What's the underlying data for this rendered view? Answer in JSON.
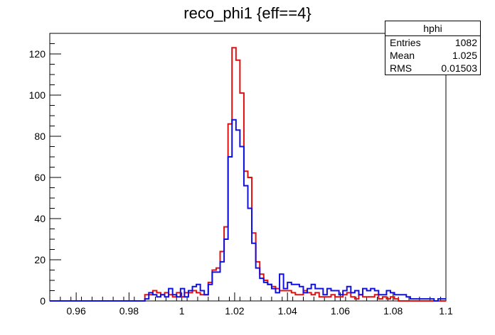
{
  "chart_data": {
    "type": "histogram",
    "title": "reco_phi1 {eff==4}",
    "xlim": [
      0.95,
      1.1
    ],
    "ylim": [
      0,
      130
    ],
    "xticks": [
      0.96,
      0.98,
      1,
      1.02,
      1.04,
      1.06,
      1.08,
      1.1
    ],
    "xtick_labels": [
      "0.96",
      "0.98",
      "1",
      "1.02",
      "1.04",
      "1.06",
      "1.08",
      "1.1"
    ],
    "yticks": [
      0,
      20,
      40,
      60,
      80,
      100,
      120
    ],
    "ytick_labels": [
      "0",
      "20",
      "40",
      "60",
      "80",
      "100",
      "120"
    ],
    "bin_width": 0.0015,
    "series": [
      {
        "color": "#e01010",
        "values": [
          0,
          0,
          0,
          0,
          0,
          0,
          0,
          0,
          0,
          0,
          0,
          0,
          0,
          0,
          0,
          0,
          0,
          0,
          0,
          0,
          0,
          0,
          0,
          0,
          3,
          3,
          5,
          4,
          3,
          4,
          3,
          2,
          4,
          2,
          4,
          4,
          5,
          4,
          3,
          3,
          9,
          15,
          16,
          24,
          36,
          86,
          123,
          117,
          101,
          63,
          60,
          33,
          19,
          13,
          10,
          8,
          7,
          6,
          5,
          5,
          5,
          4,
          3,
          3,
          5,
          4,
          3,
          4,
          2,
          2,
          2,
          3,
          2,
          2,
          3,
          4,
          2,
          1,
          3,
          2,
          2,
          2,
          3,
          1,
          2,
          1,
          2,
          1,
          0,
          0,
          0,
          0,
          0,
          0,
          0,
          0,
          0,
          0,
          0,
          0
        ]
      },
      {
        "color": "#1010e0",
        "values": [
          0,
          0,
          0,
          0,
          0,
          0,
          0,
          0,
          0,
          0,
          0,
          0,
          0,
          0,
          0,
          0,
          0,
          0,
          0,
          0,
          0,
          0,
          0,
          0,
          1,
          4,
          3,
          2,
          3,
          2,
          6,
          3,
          2,
          6,
          2,
          5,
          7,
          8,
          5,
          3,
          8,
          14,
          14,
          19,
          30,
          70,
          88,
          83,
          75,
          56,
          45,
          28,
          16,
          11,
          9,
          8,
          6,
          4,
          13,
          6,
          9,
          8,
          8,
          7,
          4,
          6,
          8,
          6,
          6,
          3,
          6,
          5,
          5,
          3,
          5,
          7,
          4,
          5,
          3,
          6,
          5,
          6,
          5,
          3,
          3,
          5,
          4,
          3,
          3,
          3,
          2,
          1,
          1,
          1,
          1,
          1,
          1,
          0,
          1,
          1
        ]
      }
    ],
    "stats": {
      "name": "hphi",
      "entries_label": "Entries",
      "entries": "1082",
      "mean_label": "Mean",
      "mean": "1.025",
      "rms_label": "RMS",
      "rms": "0.01503"
    }
  }
}
